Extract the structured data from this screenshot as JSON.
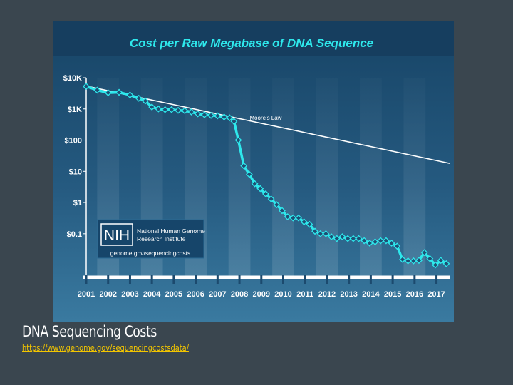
{
  "slide": {
    "caption": "DNA Sequencing Costs",
    "source_url": "https://www.genome.gov/sequencingcostsdata/"
  },
  "logo": {
    "mark": "NIH",
    "name_line1": "National Human Genome",
    "name_line2": "Research Institute",
    "url": "genome.gov/sequencingcosts"
  },
  "colors": {
    "data_line": "#2ee8ec",
    "moore_line": "#ffffff",
    "title_text": "#2ee8ec",
    "link": "#f2c500"
  },
  "chart_data": {
    "type": "line",
    "title": "Cost per Raw Megabase of DNA Sequence",
    "yscale": "log",
    "ylim": [
      0.004,
      10000
    ],
    "xlim": [
      2001,
      2017.6
    ],
    "y_ticks": [
      {
        "value": 10000,
        "label": "$10K"
      },
      {
        "value": 1000,
        "label": "$1K"
      },
      {
        "value": 100,
        "label": "$100"
      },
      {
        "value": 10,
        "label": "$10"
      },
      {
        "value": 1,
        "label": "$1"
      },
      {
        "value": 0.1,
        "label": "$0.1"
      }
    ],
    "x_ticks": [
      "2001",
      "2002",
      "2003",
      "2004",
      "2005",
      "2006",
      "2007",
      "2008",
      "2009",
      "2010",
      "2011",
      "2012",
      "2013",
      "2014",
      "2015",
      "2016",
      "2017"
    ],
    "grid": "alternating vertical bands",
    "legend": "none",
    "annotations": [
      {
        "text": "Moore's Law",
        "x": 2009.2,
        "y": 450
      }
    ],
    "series": [
      {
        "name": "Moore's Law",
        "x": [
          2001,
          2017.6
        ],
        "y": [
          5400,
          18
        ]
      },
      {
        "x": [
          2001.0,
          2001.5,
          2002.0,
          2002.5,
          2003.0,
          2003.4,
          2003.7,
          2004.0,
          2004.3,
          2004.6,
          2004.9,
          2005.2,
          2005.5,
          2005.8,
          2006.1,
          2006.4,
          2006.7,
          2007.0,
          2007.3,
          2007.55,
          2007.75,
          2007.95,
          2008.2,
          2008.45,
          2008.7,
          2008.95,
          2009.2,
          2009.45,
          2009.7,
          2009.95,
          2010.2,
          2010.45,
          2010.7,
          2010.95,
          2011.2,
          2011.45,
          2011.7,
          2011.95,
          2012.2,
          2012.45,
          2012.7,
          2012.95,
          2013.2,
          2013.45,
          2013.7,
          2013.95,
          2014.2,
          2014.45,
          2014.7,
          2014.95,
          2015.2,
          2015.45,
          2015.7,
          2015.95,
          2016.2,
          2016.45,
          2016.7,
          2016.95,
          2017.2,
          2017.45
        ],
        "y": [
          5300,
          4000,
          3300,
          3400,
          2800,
          2200,
          1800,
          1150,
          1000,
          950,
          950,
          900,
          880,
          800,
          700,
          650,
          620,
          600,
          550,
          520,
          400,
          100,
          15,
          8,
          4,
          2.8,
          1.9,
          1.3,
          0.85,
          0.55,
          0.35,
          0.32,
          0.32,
          0.24,
          0.2,
          0.12,
          0.1,
          0.1,
          0.08,
          0.07,
          0.08,
          0.07,
          0.07,
          0.07,
          0.06,
          0.05,
          0.055,
          0.06,
          0.06,
          0.05,
          0.04,
          0.015,
          0.0135,
          0.0135,
          0.014,
          0.025,
          0.016,
          0.01,
          0.014,
          0.011
        ]
      }
    ]
  }
}
